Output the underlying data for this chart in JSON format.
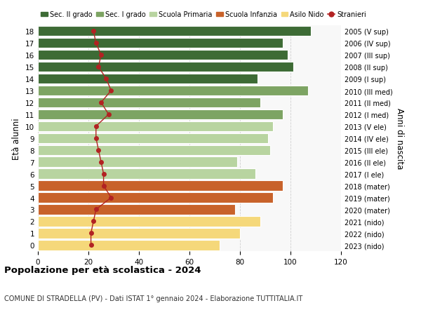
{
  "ages": [
    0,
    1,
    2,
    3,
    4,
    5,
    6,
    7,
    8,
    9,
    10,
    11,
    12,
    13,
    14,
    15,
    16,
    17,
    18
  ],
  "bar_values": [
    72,
    80,
    88,
    78,
    93,
    97,
    86,
    79,
    92,
    91,
    93,
    97,
    88,
    107,
    87,
    101,
    99,
    97,
    108
  ],
  "stranieri_values": [
    21,
    21,
    22,
    23,
    29,
    26,
    26,
    25,
    24,
    23,
    23,
    28,
    25,
    29,
    27,
    24,
    25,
    23,
    22
  ],
  "right_labels": [
    "2023 (nido)",
    "2022 (nido)",
    "2021 (nido)",
    "2020 (mater)",
    "2019 (mater)",
    "2018 (mater)",
    "2017 (I ele)",
    "2016 (II ele)",
    "2015 (III ele)",
    "2014 (IV ele)",
    "2013 (V ele)",
    "2012 (I med)",
    "2011 (II med)",
    "2010 (III med)",
    "2009 (I sup)",
    "2008 (II sup)",
    "2007 (III sup)",
    "2006 (IV sup)",
    "2005 (V sup)"
  ],
  "colors": {
    "sec2": "#3d6b35",
    "sec1": "#7da463",
    "primaria": "#b8d4a0",
    "infanzia": "#c8622a",
    "nido": "#f5d87a",
    "stranieri": "#b22222"
  },
  "bar_colors": [
    "#f5d87a",
    "#f5d87a",
    "#f5d87a",
    "#c8622a",
    "#c8622a",
    "#c8622a",
    "#b8d4a0",
    "#b8d4a0",
    "#b8d4a0",
    "#b8d4a0",
    "#b8d4a0",
    "#7da463",
    "#7da463",
    "#7da463",
    "#3d6b35",
    "#3d6b35",
    "#3d6b35",
    "#3d6b35",
    "#3d6b35"
  ],
  "legend_labels": [
    "Sec. II grado",
    "Sec. I grado",
    "Scuola Primaria",
    "Scuola Infanzia",
    "Asilo Nido",
    "Stranieri"
  ],
  "legend_colors": [
    "#3d6b35",
    "#7da463",
    "#b8d4a0",
    "#c8622a",
    "#f5d87a",
    "#b22222"
  ],
  "ylabel": "Età alunni",
  "right_ylabel": "Anni di nascita",
  "title": "Popolazione per età scolastica - 2024",
  "subtitle": "COMUNE DI STRADELLA (PV) - Dati ISTAT 1° gennaio 2024 - Elaborazione TUTTITALIA.IT",
  "xlim": [
    0,
    120
  ],
  "xticks": [
    0,
    20,
    40,
    60,
    80,
    100,
    120
  ],
  "bg_color": "#f8f8f8"
}
